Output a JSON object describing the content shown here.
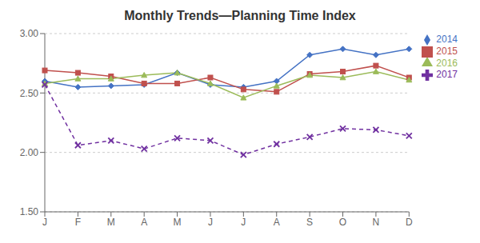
{
  "chart_data": {
    "type": "line",
    "title": "Monthly Trends—Planning Time Index",
    "categories": [
      "J",
      "F",
      "M",
      "A",
      "M",
      "J",
      "J",
      "A",
      "S",
      "O",
      "N",
      "D"
    ],
    "series": [
      {
        "name": "2014",
        "color": "#4472C4",
        "marker": "diamond",
        "line_style": "solid",
        "values": [
          2.6,
          2.55,
          2.56,
          2.57,
          2.67,
          2.57,
          2.55,
          2.6,
          2.82,
          2.87,
          2.82,
          2.87
        ]
      },
      {
        "name": "2015",
        "color": "#C0504D",
        "marker": "square",
        "line_style": "solid",
        "values": [
          2.69,
          2.67,
          2.64,
          2.58,
          2.58,
          2.63,
          2.53,
          2.51,
          2.66,
          2.68,
          2.73,
          2.63
        ]
      },
      {
        "name": "2016",
        "color": "#9BBB59",
        "marker": "triangle",
        "line_style": "solid",
        "values": [
          2.58,
          2.62,
          2.62,
          2.65,
          2.67,
          2.58,
          2.46,
          2.56,
          2.65,
          2.63,
          2.68,
          2.61
        ]
      },
      {
        "name": "2017",
        "color": "#7030A0",
        "marker": "x",
        "line_style": "dashed",
        "values": [
          2.57,
          2.06,
          2.1,
          2.03,
          2.12,
          2.1,
          1.98,
          2.07,
          2.13,
          2.2,
          2.19,
          2.14
        ]
      }
    ],
    "ylim": [
      1.5,
      3.0
    ],
    "yticks": [
      {
        "value": 1.5,
        "label": "1.50"
      },
      {
        "value": 2.0,
        "label": "2.00"
      },
      {
        "value": 2.5,
        "label": "2.50"
      },
      {
        "value": 3.0,
        "label": "3.00"
      }
    ],
    "grid": true,
    "legend": "right"
  }
}
